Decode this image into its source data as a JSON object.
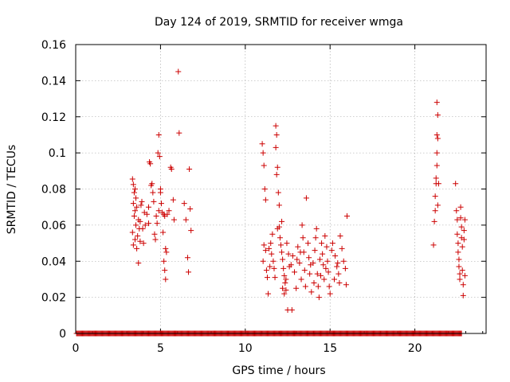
{
  "chart_data": {
    "type": "scatter",
    "title": "Day 124 of 2019, SRMTID for receiver wmga",
    "xlabel": "GPS time / hours",
    "ylabel": "SRMTID / TECUs",
    "xlim": [
      0,
      24.2
    ],
    "ylim": [
      0,
      0.16
    ],
    "xticks": [
      0,
      5,
      10,
      15,
      20
    ],
    "xtick_labels": [
      "0",
      "5",
      "10",
      "15",
      "20"
    ],
    "yticks": [
      0,
      0.02,
      0.04,
      0.06,
      0.08,
      0.1,
      0.12,
      0.14,
      0.16
    ],
    "ytick_labels": [
      "0",
      "0.02",
      "0.04",
      "0.06",
      "0.08",
      "0.1",
      "0.12",
      "0.14",
      "0.16"
    ],
    "grid": true,
    "marker": "plus",
    "color": "#cc0000",
    "zero_baseline": {
      "x_start": 0.05,
      "x_end": 22.75,
      "step": 0.05,
      "y": 0
    },
    "series": [
      {
        "name": "SRMTID",
        "points": [
          [
            3.35,
            0.0855
          ],
          [
            3.4,
            0.0825
          ],
          [
            3.45,
            0.078
          ],
          [
            3.4,
            0.072
          ],
          [
            3.5,
            0.068
          ],
          [
            3.45,
            0.065
          ],
          [
            3.55,
            0.06
          ],
          [
            3.35,
            0.056
          ],
          [
            3.5,
            0.052
          ],
          [
            3.4,
            0.049
          ],
          [
            3.6,
            0.047
          ],
          [
            3.7,
            0.039
          ],
          [
            3.65,
            0.054
          ],
          [
            3.75,
            0.058
          ],
          [
            3.8,
            0.062
          ],
          [
            3.85,
            0.071
          ],
          [
            3.9,
            0.073
          ],
          [
            3.7,
            0.063
          ],
          [
            3.55,
            0.075
          ],
          [
            3.5,
            0.08
          ],
          [
            3.8,
            0.051
          ],
          [
            4.0,
            0.05
          ],
          [
            4.1,
            0.06
          ],
          [
            4.2,
            0.066
          ],
          [
            4.3,
            0.07
          ],
          [
            4.35,
            0.095
          ],
          [
            4.4,
            0.094
          ],
          [
            4.5,
            0.083
          ],
          [
            4.45,
            0.082
          ],
          [
            4.55,
            0.078
          ],
          [
            4.6,
            0.073
          ],
          [
            4.3,
            0.061
          ],
          [
            4.65,
            0.055
          ],
          [
            4.7,
            0.052
          ],
          [
            4.8,
            0.061
          ],
          [
            4.85,
            0.1
          ],
          [
            4.9,
            0.11
          ],
          [
            4.95,
            0.098
          ],
          [
            5.0,
            0.08
          ],
          [
            5.05,
            0.072
          ],
          [
            5.1,
            0.067
          ],
          [
            5.2,
            0.066
          ],
          [
            5.25,
            0.065
          ],
          [
            5.15,
            0.056
          ],
          [
            5.3,
            0.047
          ],
          [
            5.35,
            0.045
          ],
          [
            5.2,
            0.04
          ],
          [
            5.25,
            0.035
          ],
          [
            5.3,
            0.03
          ],
          [
            5.4,
            0.066
          ],
          [
            5.5,
            0.068
          ],
          [
            5.6,
            0.092
          ],
          [
            5.65,
            0.091
          ],
          [
            5.75,
            0.074
          ],
          [
            5.8,
            0.063
          ],
          [
            6.05,
            0.145
          ],
          [
            6.1,
            0.111
          ],
          [
            6.4,
            0.072
          ],
          [
            6.5,
            0.063
          ],
          [
            6.6,
            0.042
          ],
          [
            6.65,
            0.034
          ],
          [
            6.7,
            0.091
          ],
          [
            6.75,
            0.069
          ],
          [
            6.8,
            0.057
          ],
          [
            5.0,
            0.078
          ],
          [
            4.9,
            0.068
          ],
          [
            4.75,
            0.065
          ],
          [
            4.05,
            0.067
          ],
          [
            3.6,
            0.07
          ],
          [
            3.95,
            0.058
          ],
          [
            11.0,
            0.105
          ],
          [
            11.05,
            0.1
          ],
          [
            11.1,
            0.093
          ],
          [
            11.15,
            0.08
          ],
          [
            11.2,
            0.074
          ],
          [
            11.1,
            0.049
          ],
          [
            11.2,
            0.046
          ],
          [
            11.05,
            0.04
          ],
          [
            11.25,
            0.035
          ],
          [
            11.3,
            0.031
          ],
          [
            11.4,
            0.047
          ],
          [
            11.5,
            0.05
          ],
          [
            11.55,
            0.044
          ],
          [
            11.65,
            0.04
          ],
          [
            11.7,
            0.036
          ],
          [
            11.75,
            0.031
          ],
          [
            11.8,
            0.115
          ],
          [
            11.85,
            0.11
          ],
          [
            11.8,
            0.103
          ],
          [
            11.9,
            0.092
          ],
          [
            11.85,
            0.088
          ],
          [
            11.95,
            0.078
          ],
          [
            12.0,
            0.071
          ],
          [
            12.0,
            0.059
          ],
          [
            12.05,
            0.053
          ],
          [
            12.1,
            0.049
          ],
          [
            12.15,
            0.045
          ],
          [
            12.2,
            0.041
          ],
          [
            12.25,
            0.036
          ],
          [
            12.3,
            0.032
          ],
          [
            12.35,
            0.028
          ],
          [
            12.4,
            0.024
          ],
          [
            12.5,
            0.013
          ],
          [
            12.75,
            0.013
          ],
          [
            11.9,
            0.058
          ],
          [
            12.15,
            0.062
          ],
          [
            12.2,
            0.025
          ],
          [
            12.3,
            0.022
          ],
          [
            12.4,
            0.03
          ],
          [
            12.45,
            0.05
          ],
          [
            12.6,
            0.037
          ],
          [
            12.8,
            0.043
          ],
          [
            12.9,
            0.034
          ],
          [
            13.0,
            0.025
          ],
          [
            13.1,
            0.048
          ],
          [
            13.2,
            0.039
          ],
          [
            13.3,
            0.03
          ],
          [
            13.35,
            0.06
          ],
          [
            13.4,
            0.053
          ],
          [
            13.45,
            0.045
          ],
          [
            13.5,
            0.035
          ],
          [
            13.55,
            0.026
          ],
          [
            13.6,
            0.075
          ],
          [
            13.7,
            0.05
          ],
          [
            13.75,
            0.042
          ],
          [
            13.8,
            0.033
          ],
          [
            13.9,
            0.023
          ],
          [
            14.0,
            0.039
          ],
          [
            14.1,
            0.046
          ],
          [
            14.15,
            0.053
          ],
          [
            14.2,
            0.058
          ],
          [
            14.25,
            0.033
          ],
          [
            14.3,
            0.026
          ],
          [
            14.35,
            0.02
          ],
          [
            14.4,
            0.041
          ],
          [
            14.5,
            0.05
          ],
          [
            14.55,
            0.044
          ],
          [
            14.6,
            0.038
          ],
          [
            14.65,
            0.03
          ],
          [
            14.7,
            0.054
          ],
          [
            14.8,
            0.048
          ],
          [
            14.85,
            0.04
          ],
          [
            14.9,
            0.034
          ],
          [
            14.95,
            0.026
          ],
          [
            15.0,
            0.022
          ],
          [
            15.1,
            0.046
          ],
          [
            15.15,
            0.05
          ],
          [
            15.3,
            0.043
          ],
          [
            15.4,
            0.037
          ],
          [
            15.5,
            0.033
          ],
          [
            15.55,
            0.028
          ],
          [
            15.6,
            0.054
          ],
          [
            15.7,
            0.047
          ],
          [
            15.8,
            0.04
          ],
          [
            15.9,
            0.036
          ],
          [
            15.95,
            0.027
          ],
          [
            16.0,
            0.065
          ],
          [
            13.25,
            0.045
          ],
          [
            13.85,
            0.038
          ],
          [
            14.45,
            0.032
          ],
          [
            11.35,
            0.022
          ],
          [
            11.45,
            0.037
          ],
          [
            11.6,
            0.055
          ],
          [
            12.55,
            0.044
          ],
          [
            12.7,
            0.038
          ],
          [
            13.05,
            0.041
          ],
          [
            14.05,
            0.028
          ],
          [
            14.75,
            0.036
          ],
          [
            15.25,
            0.03
          ],
          [
            15.45,
            0.039
          ],
          [
            21.1,
            0.049
          ],
          [
            21.15,
            0.062
          ],
          [
            21.2,
            0.068
          ],
          [
            21.2,
            0.076
          ],
          [
            21.25,
            0.083
          ],
          [
            21.25,
            0.086
          ],
          [
            21.3,
            0.093
          ],
          [
            21.3,
            0.1
          ],
          [
            21.35,
            0.108
          ],
          [
            21.3,
            0.11
          ],
          [
            21.35,
            0.121
          ],
          [
            21.3,
            0.128
          ],
          [
            21.35,
            0.071
          ],
          [
            21.4,
            0.083
          ],
          [
            22.4,
            0.083
          ],
          [
            22.45,
            0.068
          ],
          [
            22.5,
            0.063
          ],
          [
            22.5,
            0.055
          ],
          [
            22.55,
            0.05
          ],
          [
            22.55,
            0.045
          ],
          [
            22.6,
            0.041
          ],
          [
            22.6,
            0.037
          ],
          [
            22.65,
            0.033
          ],
          [
            22.65,
            0.03
          ],
          [
            22.7,
            0.07
          ],
          [
            22.7,
            0.064
          ],
          [
            22.75,
            0.059
          ],
          [
            22.75,
            0.053
          ],
          [
            22.8,
            0.048
          ],
          [
            22.8,
            0.035
          ],
          [
            22.85,
            0.027
          ],
          [
            22.85,
            0.021
          ],
          [
            22.9,
            0.057
          ],
          [
            22.9,
            0.052
          ],
          [
            22.95,
            0.063
          ],
          [
            22.95,
            0.032
          ]
        ]
      }
    ]
  }
}
